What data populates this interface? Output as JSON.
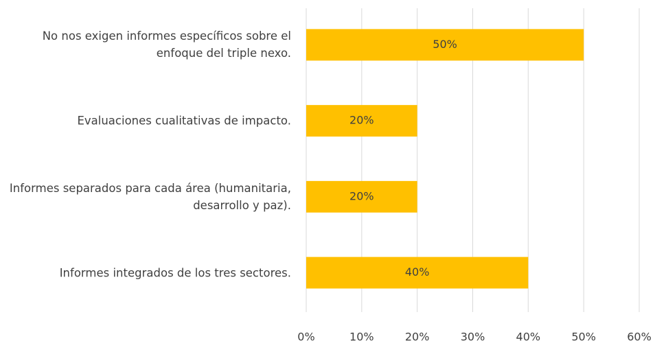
{
  "chart_data": {
    "type": "bar",
    "orientation": "horizontal",
    "categories": [
      "No nos exigen informes específicos sobre el enfoque del triple nexo.",
      "Evaluaciones cualitativas de impacto.",
      "Informes separados para cada área (humanitaria, desarrollo y paz).",
      "Informes integrados de los tres sectores."
    ],
    "values": [
      50,
      20,
      20,
      40
    ],
    "value_labels": [
      "50%",
      "20%",
      "20%",
      "40%"
    ],
    "color": "#ffc000",
    "xlim": [
      0,
      60
    ],
    "xticks": [
      {
        "value": 0,
        "label": "0%"
      },
      {
        "value": 10,
        "label": "10%"
      },
      {
        "value": 20,
        "label": "20%"
      },
      {
        "value": 30,
        "label": "30%"
      },
      {
        "value": 40,
        "label": "40%"
      },
      {
        "value": 50,
        "label": "50%"
      },
      {
        "value": 60,
        "label": "60%"
      }
    ],
    "grid": true
  }
}
